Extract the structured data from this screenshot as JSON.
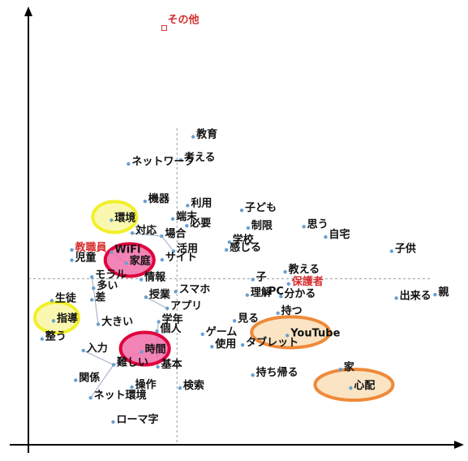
{
  "chart_data": {
    "type": "scatter",
    "title": "",
    "xlabel": "",
    "ylabel": "",
    "xlim": [
      0,
      100
    ],
    "ylim": [
      0,
      100
    ],
    "grid": false,
    "colors": {
      "point": "#6a9fcf",
      "axis": "#000000",
      "guide": "#9a9a9a",
      "label": "#111111",
      "group_label": "#d62f2f",
      "circle_yellow": "#f2ef28",
      "circle_red": "#e0003c",
      "circle_orange": "#ee8a3a"
    },
    "reference_lines": {
      "x": 34.9,
      "y": 38.6
    },
    "points": [
      {
        "label": "その他",
        "x": 31.9,
        "y": 98.2,
        "kind": "group"
      },
      {
        "label": "教育",
        "x": 38.7,
        "y": 71.6
      },
      {
        "label": "ネットワーク",
        "x": 23.5,
        "y": 65.3
      },
      {
        "label": "考える",
        "x": 35.8,
        "y": 66.2
      },
      {
        "label": "機器",
        "x": 27.4,
        "y": 56.6
      },
      {
        "label": "利用",
        "x": 37.4,
        "y": 55.6
      },
      {
        "label": "子ども",
        "x": 50.1,
        "y": 54.5
      },
      {
        "label": "端末",
        "x": 33.9,
        "y": 52.5
      },
      {
        "label": "環境",
        "x": 19.5,
        "y": 52.2,
        "highlight": "yellow"
      },
      {
        "label": "必要",
        "x": 37.2,
        "y": 50.9
      },
      {
        "label": "制限",
        "x": 51.6,
        "y": 50.4
      },
      {
        "label": "思う",
        "x": 64.7,
        "y": 50.7
      },
      {
        "label": "対応",
        "x": 24.4,
        "y": 49.2
      },
      {
        "label": "場合",
        "x": 31.3,
        "y": 48.5
      },
      {
        "label": "学校",
        "x": 47.2,
        "y": 47.1
      },
      {
        "label": "自宅",
        "x": 69.8,
        "y": 48.3
      },
      {
        "label": "教職員",
        "x": 10.2,
        "y": 45.3,
        "kind": "group"
      },
      {
        "label": "WiFi",
        "x": 19.5,
        "y": 44.8
      },
      {
        "label": "活用",
        "x": 34.1,
        "y": 45.0
      },
      {
        "label": "感じる",
        "x": 46.5,
        "y": 45.3
      },
      {
        "label": "子供",
        "x": 85.3,
        "y": 45.0
      },
      {
        "label": "児童",
        "x": 10.2,
        "y": 42.9
      },
      {
        "label": "家庭",
        "x": 23.0,
        "y": 42.2,
        "highlight": "red"
      },
      {
        "label": "サイト",
        "x": 31.4,
        "y": 43.0
      },
      {
        "label": "教える",
        "x": 60.3,
        "y": 40.2
      },
      {
        "label": "モラル",
        "x": 14.9,
        "y": 39.0
      },
      {
        "label": "情報",
        "x": 26.5,
        "y": 38.4
      },
      {
        "label": "子",
        "x": 52.7,
        "y": 38.4
      },
      {
        "label": "保護者",
        "x": 61.1,
        "y": 37.4,
        "kind": "group"
      },
      {
        "label": "多い",
        "x": 15.3,
        "y": 36.4
      },
      {
        "label": "スマホ",
        "x": 34.6,
        "y": 35.6
      },
      {
        "label": "理解",
        "x": 51.4,
        "y": 34.8
      },
      {
        "label": "PC",
        "x": 55.6,
        "y": 35.1
      },
      {
        "label": "分かる",
        "x": 59.3,
        "y": 34.5
      },
      {
        "label": "生徒",
        "x": 5.5,
        "y": 33.5
      },
      {
        "label": "差",
        "x": 14.9,
        "y": 33.7
      },
      {
        "label": "授業",
        "x": 27.6,
        "y": 34.3
      },
      {
        "label": "出来る",
        "x": 86.4,
        "y": 34.1
      },
      {
        "label": "親",
        "x": 95.5,
        "y": 34.9
      },
      {
        "label": "アプリ",
        "x": 32.6,
        "y": 31.7
      },
      {
        "label": "持つ",
        "x": 58.6,
        "y": 30.6
      },
      {
        "label": "指導",
        "x": 5.9,
        "y": 28.8,
        "highlight": "yellow"
      },
      {
        "label": "大きい",
        "x": 16.4,
        "y": 28.0
      },
      {
        "label": "学年",
        "x": 30.6,
        "y": 28.6
      },
      {
        "label": "見る",
        "x": 48.4,
        "y": 28.8
      },
      {
        "label": "個人",
        "x": 30.2,
        "y": 26.4
      },
      {
        "label": "YouTube",
        "x": 60.8,
        "y": 25.4,
        "highlight": "orange"
      },
      {
        "label": "ゲーム",
        "x": 40.9,
        "y": 25.7
      },
      {
        "label": "整う",
        "x": 3.2,
        "y": 24.6
      },
      {
        "label": "時間",
        "x": 26.6,
        "y": 21.6,
        "highlight": "red"
      },
      {
        "label": "使用",
        "x": 43.1,
        "y": 22.8
      },
      {
        "label": "タブレット",
        "x": 50.3,
        "y": 23.2
      },
      {
        "label": "入力",
        "x": 12.9,
        "y": 21.9
      },
      {
        "label": "難しい",
        "x": 20.0,
        "y": 18.6
      },
      {
        "label": "基本",
        "x": 30.4,
        "y": 18.1
      },
      {
        "label": "家",
        "x": 73.3,
        "y": 17.5
      },
      {
        "label": "持ち帰る",
        "x": 52.7,
        "y": 16.2
      },
      {
        "label": "関係",
        "x": 11.1,
        "y": 15.0
      },
      {
        "label": "心配",
        "x": 75.7,
        "y": 13.2,
        "highlight": "orange"
      },
      {
        "label": "操作",
        "x": 24.3,
        "y": 13.4
      },
      {
        "label": "検索",
        "x": 35.6,
        "y": 13.2
      },
      {
        "label": "ネット環境",
        "x": 14.6,
        "y": 10.9
      },
      {
        "label": "ローマ字",
        "x": 19.9,
        "y": 5.3
      }
    ]
  }
}
